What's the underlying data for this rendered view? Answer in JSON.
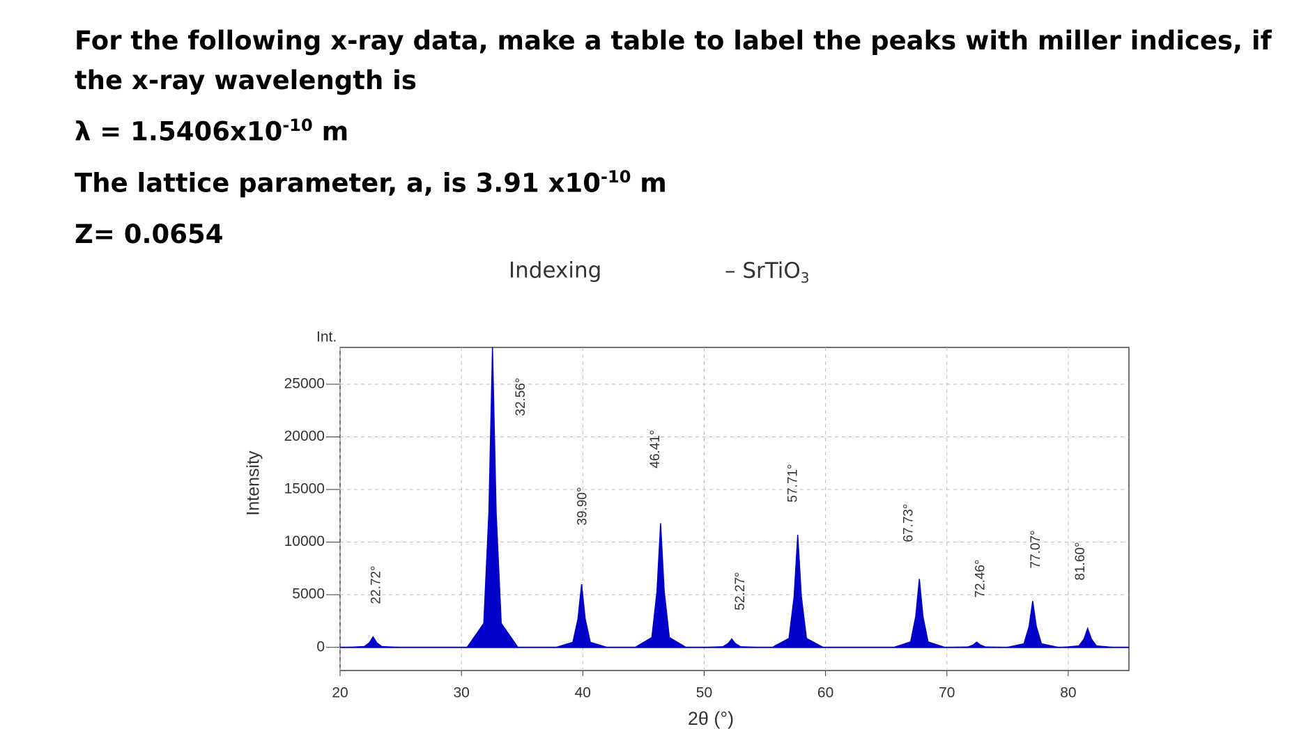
{
  "header": {
    "question": "For the following x-ray data, make a table to label the peaks with miller indices, if the x-ray wavelength is",
    "wavelength": {
      "text": "λ = 1.5406x10",
      "exponent": "-10",
      "unit": "m"
    },
    "lattice": {
      "text": "The lattice parameter, a, is 3.91 x10",
      "exponent": "-10",
      "unit": "m"
    },
    "z": "Z= 0.0654"
  },
  "chart_data": {
    "type": "peaks",
    "title": "Indexing",
    "title_suffix": "– SrTiO",
    "title_subscript": "3",
    "y_unit_label": "Int.",
    "ylabel": "Intensity",
    "xlabel": "2θ (°)",
    "color": "#0000c8",
    "grid": true,
    "x": [
      22.72,
      32.56,
      39.9,
      46.41,
      52.27,
      57.71,
      67.73,
      72.46,
      77.07,
      81.6
    ],
    "values": [
      1000,
      28500,
      6000,
      11800,
      800,
      10700,
      6500,
      500,
      4400,
      1800
    ],
    "value_labels": [
      "22.72°",
      "32.56°",
      "39.90°",
      "46.41°",
      "52.27°",
      "57.71°",
      "67.73°",
      "72.46°",
      "77.07°",
      "81.60°"
    ],
    "xlim": [
      20,
      85
    ],
    "xticks": [
      20,
      30,
      40,
      50,
      60,
      70,
      80
    ],
    "ylim": [
      -2200,
      28500
    ],
    "yticks": [
      0,
      5000,
      10000,
      15000,
      20000,
      25000
    ]
  }
}
